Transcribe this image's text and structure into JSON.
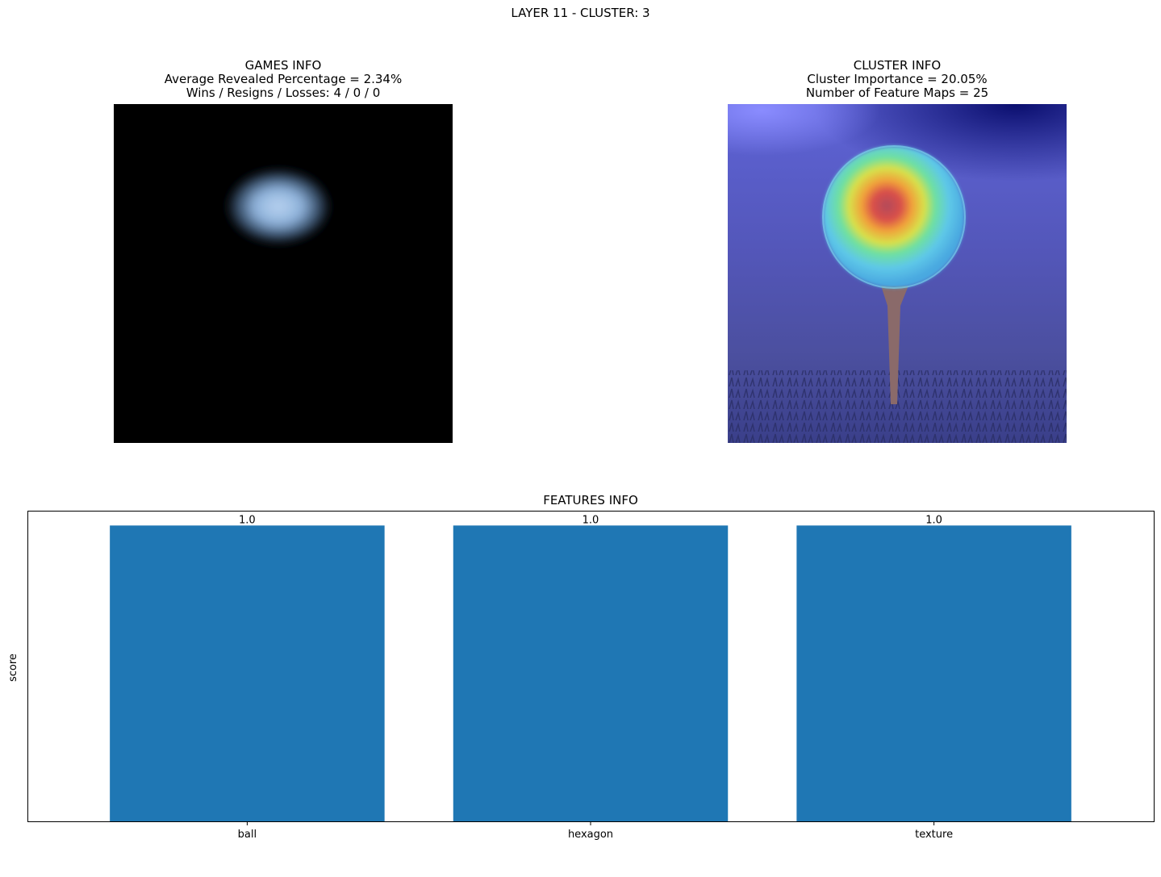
{
  "figure": {
    "suptitle": "LAYER 11 - CLUSTER: 3"
  },
  "games_info": {
    "title": "GAMES INFO",
    "line1": "Average Revealed Percentage = 2.34%",
    "line2": "Wins / Resigns / Losses: 4 / 0 / 0"
  },
  "cluster_info": {
    "title": "CLUSTER INFO",
    "line1": "Cluster Importance = 20.05%",
    "line2": "Number of Feature Maps = 25"
  },
  "colors": {
    "bar": "#1f77b4"
  },
  "chart_data": {
    "type": "bar",
    "title": "FEATURES INFO",
    "xlabel": "",
    "ylabel": "score",
    "categories": [
      "ball",
      "hexagon",
      "texture"
    ],
    "values": [
      1.0,
      1.0,
      1.0
    ],
    "data_labels": [
      "1.0",
      "1.0",
      "1.0"
    ],
    "ylim": [
      0,
      1.05
    ],
    "grid": false
  }
}
